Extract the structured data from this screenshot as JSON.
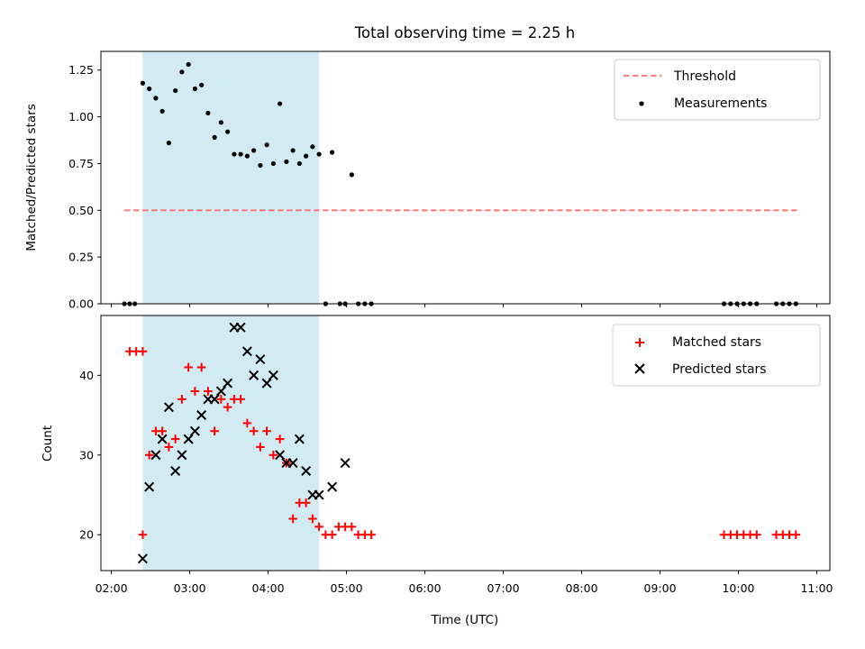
{
  "chart_data": {
    "title": "Total observing time = 2.25 h",
    "xlabel": "Time (UTC)",
    "x_ticks": [
      "02:00",
      "03:00",
      "04:00",
      "05:00",
      "06:00",
      "07:00",
      "08:00",
      "09:00",
      "10:00",
      "11:00"
    ],
    "xlim": [
      "01:52",
      "11:10"
    ],
    "highlight_span": {
      "start": "02:24",
      "end": "04:39",
      "color": "#add8e6"
    },
    "panels": [
      {
        "type": "scatter",
        "ylabel": "Matched/Predicted stars",
        "ylim": [
          0.0,
          1.35
        ],
        "y_ticks": [
          "0.00",
          "0.25",
          "0.50",
          "0.75",
          "1.00",
          "1.25"
        ],
        "legend_position": "top-right",
        "threshold": {
          "name": "Threshold",
          "value": 0.5,
          "x_start": "02:10",
          "x_end": "10:45",
          "color": "#ff6b6b",
          "style": "dashed"
        },
        "series": [
          {
            "name": "Measurements",
            "color": "#000000",
            "marker": "dot",
            "x": [
              "02:10",
              "02:14",
              "02:18",
              "02:24",
              "02:29",
              "02:34",
              "02:39",
              "02:44",
              "02:49",
              "02:54",
              "02:59",
              "03:04",
              "03:09",
              "03:14",
              "03:19",
              "03:24",
              "03:29",
              "03:34",
              "03:39",
              "03:44",
              "03:49",
              "03:54",
              "03:59",
              "04:04",
              "04:09",
              "04:14",
              "04:19",
              "04:24",
              "04:29",
              "04:34",
              "04:39",
              "04:44",
              "04:49",
              "04:55",
              "04:59",
              "05:04",
              "05:09",
              "05:14",
              "05:19",
              "09:49",
              "09:54",
              "09:59",
              "10:04",
              "10:09",
              "10:14",
              "10:29",
              "10:34",
              "10:39",
              "10:44"
            ],
            "y": [
              0,
              0,
              0,
              1.18,
              1.15,
              1.1,
              1.03,
              0.86,
              1.14,
              1.24,
              1.28,
              1.15,
              1.17,
              1.02,
              0.89,
              0.97,
              0.92,
              0.8,
              0.8,
              0.79,
              0.82,
              0.74,
              0.85,
              0.75,
              1.07,
              0.76,
              0.82,
              0.75,
              0.79,
              0.84,
              0.8,
              0,
              0.81,
              0,
              0,
              0.69,
              0,
              0,
              0,
              0,
              0,
              0,
              0,
              0,
              0,
              0,
              0,
              0,
              0
            ]
          }
        ]
      },
      {
        "type": "scatter",
        "ylabel": "Count",
        "ylim": [
          15.5,
          47.5
        ],
        "y_ticks": [
          "20",
          "30",
          "40"
        ],
        "legend_position": "top-right",
        "series": [
          {
            "name": "Matched stars",
            "color": "#ff0000",
            "marker": "plus",
            "x": [
              "02:14",
              "02:19",
              "02:24",
              "02:24",
              "02:29",
              "02:34",
              "02:39",
              "02:44",
              "02:49",
              "02:54",
              "02:59",
              "03:04",
              "03:09",
              "03:14",
              "03:19",
              "03:24",
              "03:29",
              "03:34",
              "03:39",
              "03:44",
              "03:49",
              "03:54",
              "03:59",
              "04:04",
              "04:09",
              "04:14",
              "04:19",
              "04:24",
              "04:29",
              "04:34",
              "04:39",
              "04:44",
              "04:49",
              "04:54",
              "04:59",
              "05:04",
              "05:09",
              "05:14",
              "05:19",
              "09:49",
              "09:54",
              "09:59",
              "10:04",
              "10:09",
              "10:14",
              "10:29",
              "10:34",
              "10:39",
              "10:44"
            ],
            "y": [
              43,
              43,
              43,
              20,
              30,
              33,
              33,
              31,
              32,
              37,
              41,
              38,
              41,
              38,
              33,
              37,
              36,
              37,
              37,
              34,
              33,
              31,
              33,
              30,
              32,
              29,
              22,
              24,
              24,
              22,
              21,
              20,
              20,
              21,
              21,
              21,
              20,
              20,
              20,
              20,
              20,
              20,
              20,
              20,
              20,
              20,
              20,
              20,
              20
            ]
          },
          {
            "name": "Predicted stars",
            "color": "#000000",
            "marker": "cross",
            "x": [
              "02:24",
              "02:29",
              "02:34",
              "02:39",
              "02:44",
              "02:49",
              "02:54",
              "02:59",
              "03:04",
              "03:09",
              "03:14",
              "03:19",
              "03:24",
              "03:29",
              "03:34",
              "03:39",
              "03:44",
              "03:49",
              "03:54",
              "03:59",
              "04:04",
              "04:09",
              "04:14",
              "04:19",
              "04:24",
              "04:29",
              "04:34",
              "04:39",
              "04:49",
              "04:59"
            ],
            "y": [
              17,
              26,
              30,
              32,
              36,
              28,
              30,
              32,
              33,
              35,
              37,
              37,
              38,
              39,
              46,
              46,
              43,
              40,
              42,
              39,
              40,
              30,
              29,
              29,
              32,
              28,
              25,
              25,
              26,
              29
            ]
          }
        ]
      }
    ]
  }
}
